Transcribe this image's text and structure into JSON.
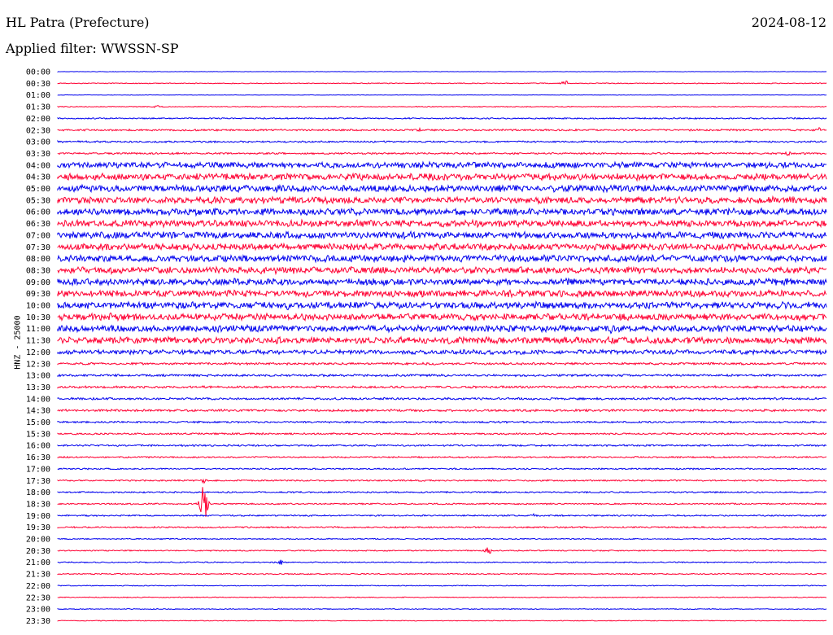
{
  "header": {
    "station": "HL Patra (Prefecture)",
    "date": "2024-08-12",
    "filter": "Applied filter: WWSSN-SP"
  },
  "axis": {
    "ylabel": "HNZ - 25000"
  },
  "colors": {
    "blue": "#0000ee",
    "red": "#ff0033"
  },
  "chart_data": {
    "type": "line",
    "title": "HL Patra (Prefecture)",
    "subtitle": "Applied filter: WWSSN-SP",
    "ylabel": "HNZ - 25000",
    "row_labels": [
      "00:00",
      "00:30",
      "01:00",
      "01:30",
      "02:00",
      "02:30",
      "03:00",
      "03:30",
      "04:00",
      "04:30",
      "05:00",
      "05:30",
      "06:00",
      "06:30",
      "07:00",
      "07:30",
      "08:00",
      "08:30",
      "09:00",
      "09:30",
      "10:00",
      "10:30",
      "11:00",
      "11:30",
      "12:00",
      "12:30",
      "13:00",
      "13:30",
      "14:00",
      "14:30",
      "15:00",
      "15:30",
      "16:00",
      "16:30",
      "17:00",
      "17:30",
      "18:00",
      "18:30",
      "19:00",
      "19:30",
      "20:00",
      "20:30",
      "21:00",
      "21:30",
      "22:00",
      "22:30",
      "23:00",
      "23:30"
    ],
    "row_colors": [
      "blue",
      "red",
      "blue",
      "red",
      "blue",
      "red",
      "blue",
      "red",
      "blue",
      "red",
      "blue",
      "red",
      "blue",
      "red",
      "blue",
      "red",
      "blue",
      "red",
      "blue",
      "red",
      "blue",
      "red",
      "blue",
      "red",
      "blue",
      "red",
      "blue",
      "red",
      "blue",
      "red",
      "blue",
      "red",
      "blue",
      "red",
      "blue",
      "red",
      "blue",
      "red",
      "blue",
      "red",
      "blue",
      "red",
      "blue",
      "red",
      "blue",
      "red",
      "blue",
      "red"
    ],
    "noise_amplitude": [
      0.3,
      0.6,
      0.3,
      0.6,
      0.9,
      1.2,
      1.2,
      1.2,
      4.0,
      4.5,
      4.5,
      4.5,
      4.5,
      4.5,
      4.5,
      4.5,
      4.5,
      4.5,
      4.5,
      4.5,
      4.5,
      4.5,
      4.5,
      4.5,
      3.0,
      1.5,
      1.5,
      1.5,
      1.5,
      1.5,
      1.2,
      1.2,
      1.2,
      1.0,
      1.0,
      1.0,
      1.0,
      1.0,
      1.0,
      1.0,
      0.8,
      0.8,
      0.8,
      0.8,
      0.6,
      0.6,
      0.6,
      0.5
    ],
    "events": [
      {
        "row": 1,
        "pos": 0.66,
        "amp": 6
      },
      {
        "row": 3,
        "pos": 0.13,
        "amp": 4
      },
      {
        "row": 5,
        "pos": 0.47,
        "amp": 4
      },
      {
        "row": 5,
        "pos": 0.99,
        "amp": 4
      },
      {
        "row": 7,
        "pos": 0.95,
        "amp": 4
      },
      {
        "row": 20,
        "pos": 0.3,
        "amp": 9
      },
      {
        "row": 21,
        "pos": 0.07,
        "amp": 8
      },
      {
        "row": 22,
        "pos": 0.72,
        "amp": 8
      },
      {
        "row": 35,
        "pos": 0.19,
        "amp": 4
      },
      {
        "row": 37,
        "pos": 0.19,
        "amp": 36
      },
      {
        "row": 38,
        "pos": 0.62,
        "amp": 4
      },
      {
        "row": 41,
        "pos": 0.56,
        "amp": 8
      },
      {
        "row": 42,
        "pos": 0.29,
        "amp": 4
      }
    ]
  }
}
